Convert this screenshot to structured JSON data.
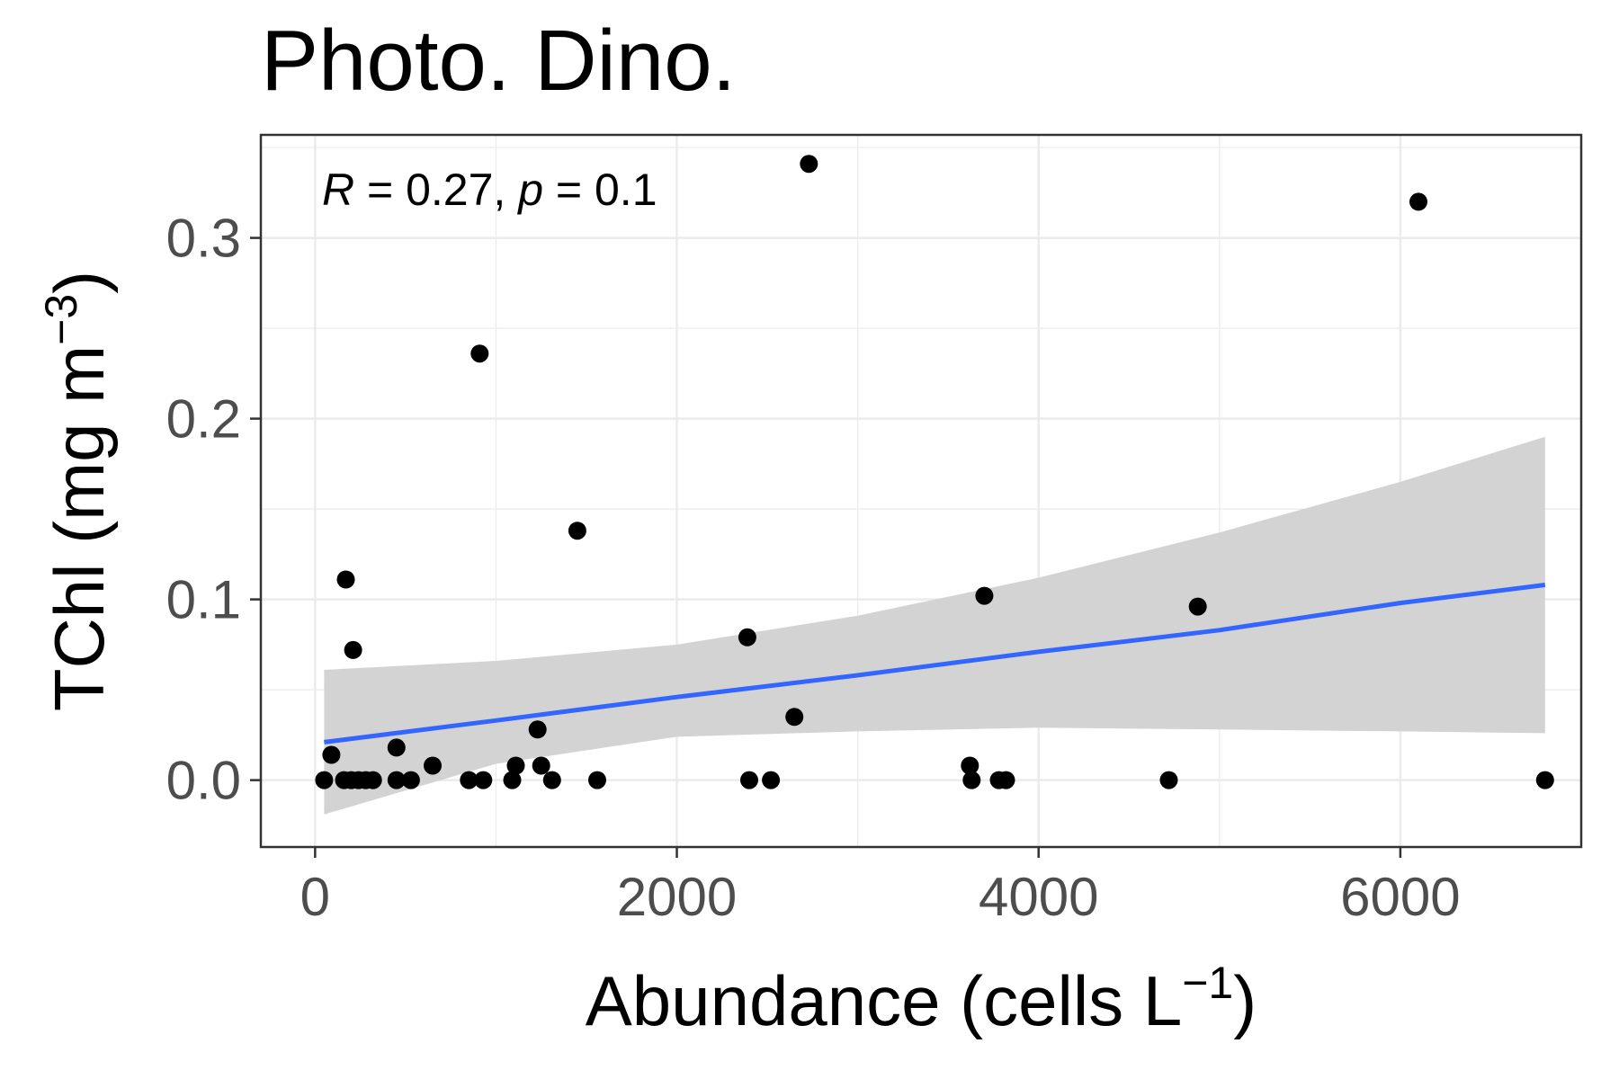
{
  "chart_data": {
    "type": "scatter",
    "title": "Photo. Dino.",
    "xlabel_main": "Abundance (cells L",
    "xlabel_sup": "−1",
    "xlabel_close": ")",
    "ylabel_main": "TChl (mg m",
    "ylabel_sup": "−3",
    "ylabel_close": ")",
    "annotation": {
      "r_symbol": "R",
      "r_text": " = 0.27, ",
      "p_symbol": "p",
      "p_text": " = 0.1"
    },
    "xlim": [
      -300,
      7000
    ],
    "ylim": [
      -0.037,
      0.357
    ],
    "x_ticks": [
      0,
      2000,
      4000,
      6000
    ],
    "x_tick_labels": [
      "0",
      "2000",
      "4000",
      "6000"
    ],
    "y_ticks": [
      0.0,
      0.1,
      0.2,
      0.3
    ],
    "y_tick_labels": [
      "0.0",
      "0.1",
      "0.2",
      "0.3"
    ],
    "grid": true,
    "colors": {
      "points": "#000000",
      "fit_line": "#3366ff",
      "confidence_band": "#d3d3d3",
      "grid": "#ebebeb",
      "panel_border": "#333333"
    },
    "points": [
      {
        "x": 50,
        "y": 0.0
      },
      {
        "x": 90,
        "y": 0.014
      },
      {
        "x": 170,
        "y": 0.111
      },
      {
        "x": 210,
        "y": 0.072
      },
      {
        "x": 160,
        "y": 0.0
      },
      {
        "x": 200,
        "y": 0.0
      },
      {
        "x": 240,
        "y": 0.0
      },
      {
        "x": 280,
        "y": 0.0
      },
      {
        "x": 320,
        "y": 0.0
      },
      {
        "x": 450,
        "y": 0.018
      },
      {
        "x": 450,
        "y": 0.0
      },
      {
        "x": 530,
        "y": 0.0
      },
      {
        "x": 650,
        "y": 0.008
      },
      {
        "x": 850,
        "y": 0.0
      },
      {
        "x": 910,
        "y": 0.236
      },
      {
        "x": 930,
        "y": 0.0
      },
      {
        "x": 1090,
        "y": 0.0
      },
      {
        "x": 1110,
        "y": 0.008
      },
      {
        "x": 1230,
        "y": 0.028
      },
      {
        "x": 1250,
        "y": 0.008
      },
      {
        "x": 1310,
        "y": 0.0
      },
      {
        "x": 1450,
        "y": 0.138
      },
      {
        "x": 1560,
        "y": 0.0
      },
      {
        "x": 2390,
        "y": 0.079
      },
      {
        "x": 2400,
        "y": 0.0
      },
      {
        "x": 2520,
        "y": 0.0
      },
      {
        "x": 2650,
        "y": 0.035
      },
      {
        "x": 2730,
        "y": 0.341
      },
      {
        "x": 3620,
        "y": 0.008
      },
      {
        "x": 3630,
        "y": 0.0
      },
      {
        "x": 3700,
        "y": 0.102
      },
      {
        "x": 3780,
        "y": 0.0
      },
      {
        "x": 3820,
        "y": 0.0
      },
      {
        "x": 4720,
        "y": 0.0
      },
      {
        "x": 4880,
        "y": 0.096
      },
      {
        "x": 6100,
        "y": 0.32
      },
      {
        "x": 6800,
        "y": 0.0
      }
    ],
    "fit": {
      "x": [
        50,
        1000,
        2000,
        3000,
        4000,
        5000,
        6000,
        6800
      ],
      "y": [
        0.021,
        0.033,
        0.046,
        0.058,
        0.071,
        0.083,
        0.098,
        0.108
      ],
      "lower": [
        -0.019,
        0.009,
        0.024,
        0.027,
        0.029,
        0.028,
        0.027,
        0.026
      ],
      "upper": [
        0.061,
        0.066,
        0.075,
        0.091,
        0.112,
        0.137,
        0.165,
        0.19
      ]
    }
  }
}
